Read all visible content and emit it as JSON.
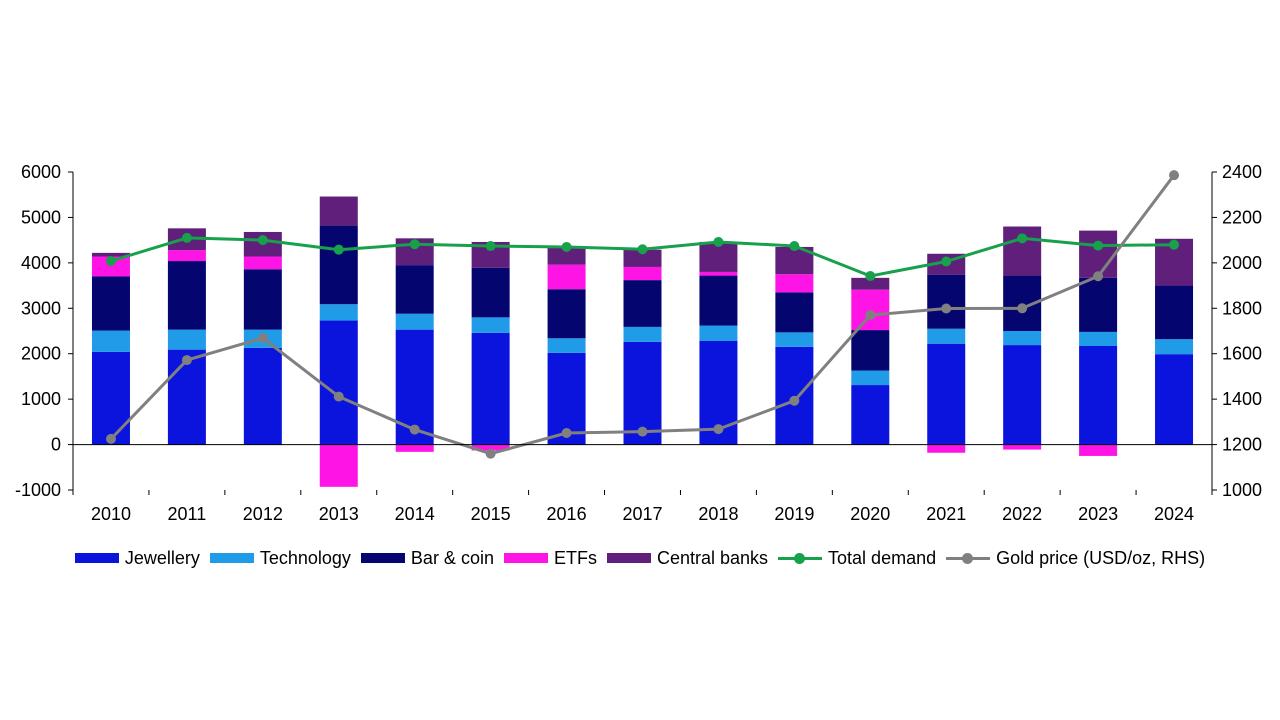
{
  "chart_data": {
    "type": "bar",
    "stacked": true,
    "categories": [
      "2010",
      "2011",
      "2012",
      "2013",
      "2014",
      "2015",
      "2016",
      "2017",
      "2018",
      "2019",
      "2020",
      "2021",
      "2022",
      "2023",
      "2024"
    ],
    "series": [
      {
        "name": "Jewellery",
        "color": "#0a14dc",
        "values": [
          2040,
          2090,
          2130,
          2730,
          2530,
          2460,
          2020,
          2260,
          2280,
          2150,
          1310,
          2220,
          2190,
          2170,
          1990
        ]
      },
      {
        "name": "Technology",
        "color": "#1f9be8",
        "values": [
          470,
          440,
          400,
          360,
          350,
          340,
          320,
          330,
          340,
          320,
          320,
          330,
          310,
          310,
          330
        ]
      },
      {
        "name": "Bar & coin",
        "color": "#050570",
        "values": [
          1190,
          1510,
          1330,
          1730,
          1070,
          1090,
          1080,
          1030,
          1100,
          880,
          890,
          1190,
          1220,
          1190,
          1180
        ]
      },
      {
        "name": "ETFs",
        "color": "#ff14e6",
        "values": [
          440,
          240,
          280,
          -930,
          -160,
          -130,
          540,
          290,
          80,
          400,
          890,
          -180,
          -110,
          -250,
          0
        ]
      },
      {
        "name": "Central banks",
        "color": "#5f1f7a",
        "values": [
          80,
          480,
          540,
          640,
          590,
          570,
          390,
          380,
          660,
          600,
          260,
          460,
          1080,
          1040,
          1030
        ]
      }
    ],
    "lines": [
      {
        "name": "Total demand",
        "color": "#16a14a",
        "axis": "left",
        "values": [
          4040,
          4550,
          4500,
          4290,
          4410,
          4370,
          4350,
          4300,
          4460,
          4370,
          3710,
          4030,
          4540,
          4380,
          4400
        ]
      },
      {
        "name": "Gold price (USD/oz, RHS)",
        "color": "#808080",
        "axis": "right",
        "values": [
          1225,
          1572,
          1669,
          1411,
          1266,
          1160,
          1251,
          1257,
          1268,
          1393,
          1770,
          1799,
          1800,
          1941,
          2386
        ]
      }
    ],
    "ylim": [
      -1000,
      6000
    ],
    "yticks": [
      "-1000",
      "0",
      "1000",
      "2000",
      "3000",
      "4000",
      "5000",
      "6000"
    ],
    "y2lim": [
      1000,
      2400
    ],
    "y2ticks": [
      "1000",
      "1200",
      "1400",
      "1600",
      "1800",
      "2000",
      "2200",
      "2400"
    ],
    "grid": false,
    "legend": "bottom"
  }
}
